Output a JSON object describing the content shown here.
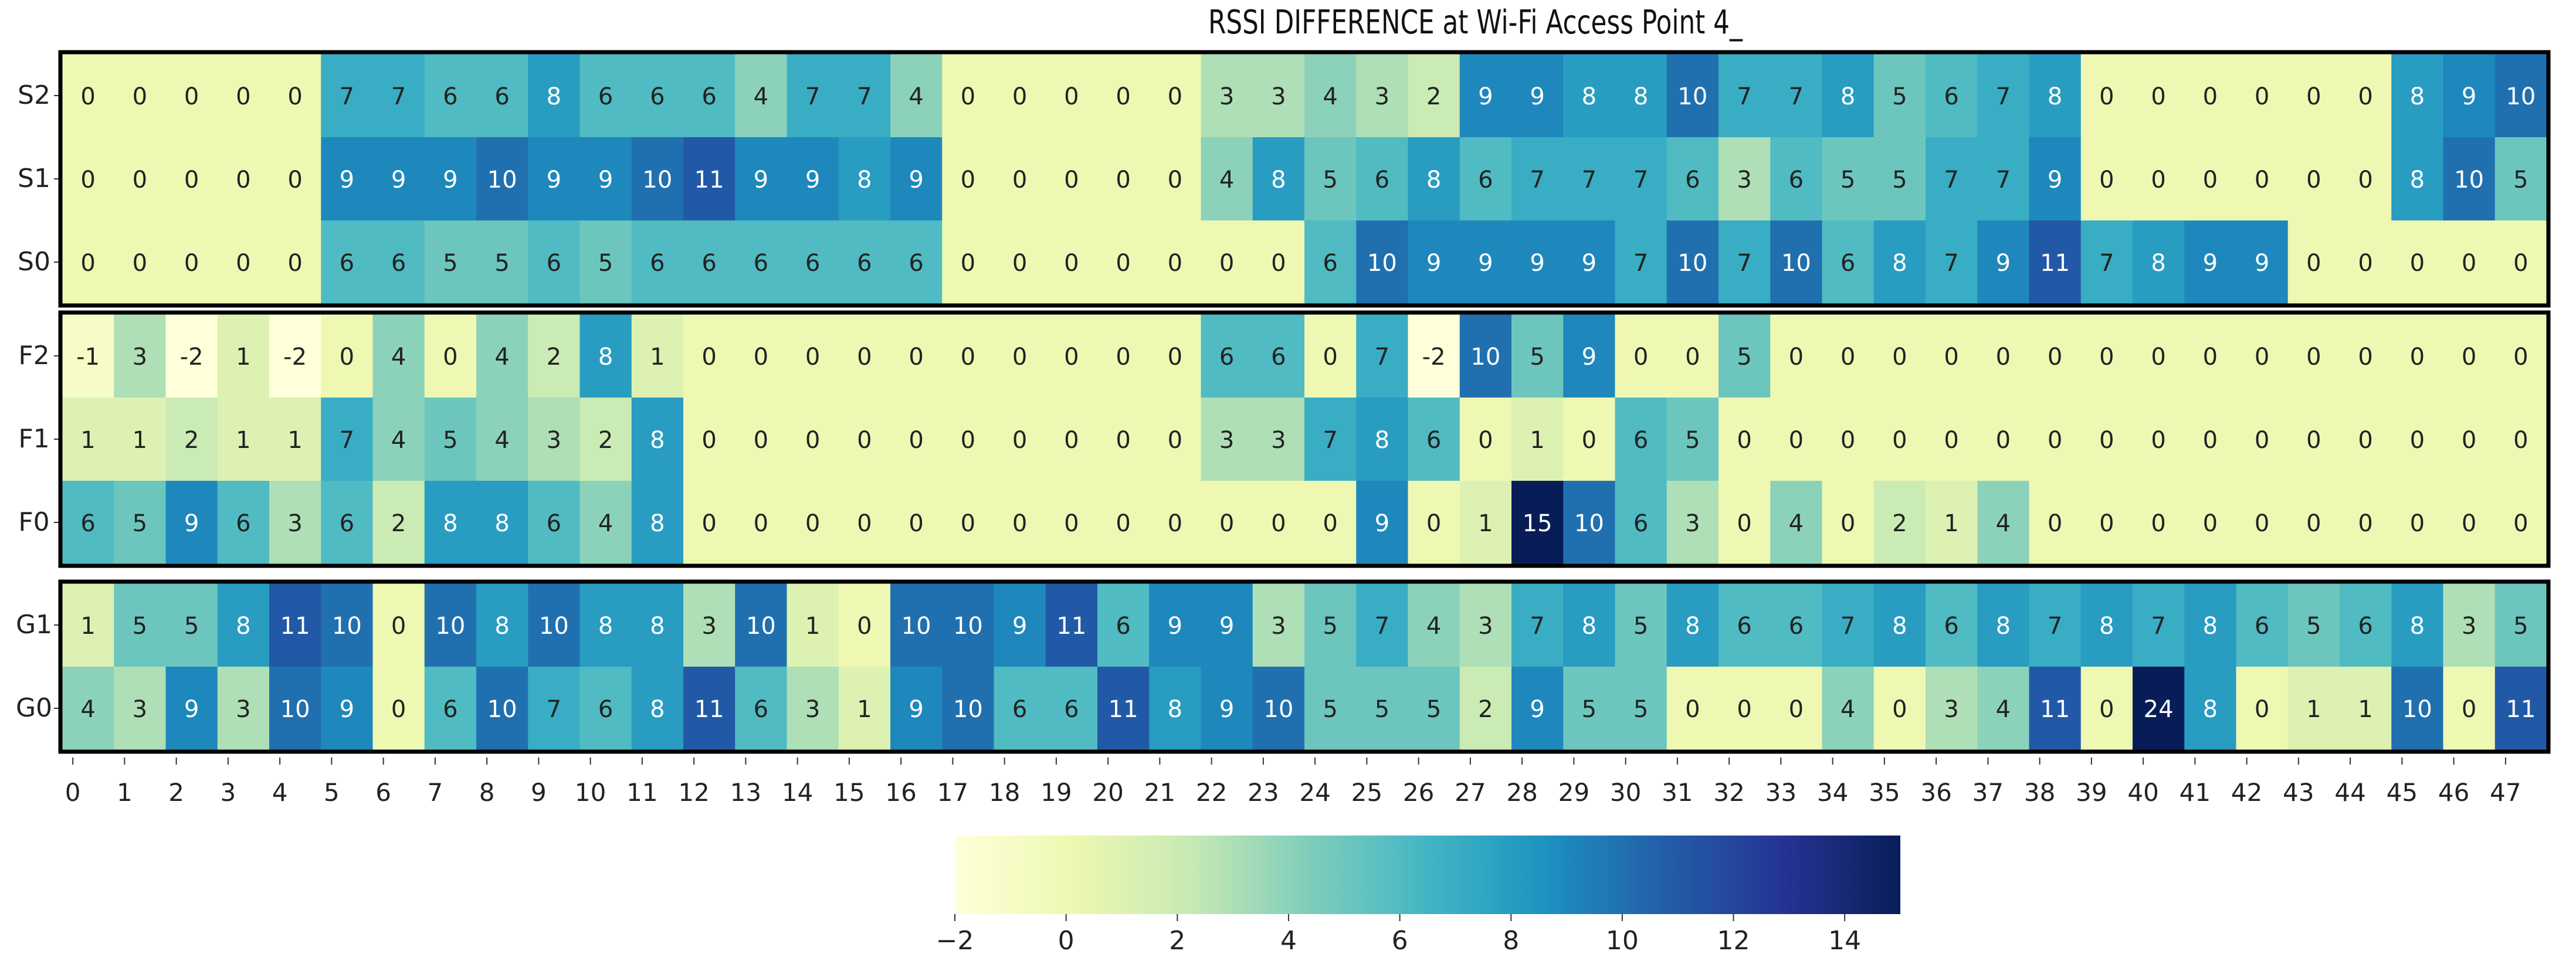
{
  "chart_data": {
    "type": "heatmap",
    "title": "RSSI DIFFERENCE at Wi-Fi Access Point 4_",
    "x_ticks": [
      "0",
      "1",
      "2",
      "3",
      "4",
      "5",
      "6",
      "7",
      "8",
      "9",
      "10",
      "11",
      "12",
      "13",
      "14",
      "15",
      "16",
      "17",
      "18",
      "19",
      "20",
      "21",
      "22",
      "23",
      "24",
      "25",
      "26",
      "27",
      "28",
      "29",
      "30",
      "31",
      "32",
      "33",
      "34",
      "35",
      "36",
      "37",
      "38",
      "39",
      "40",
      "41",
      "42",
      "43",
      "44",
      "45",
      "46",
      "47"
    ],
    "color_range": [
      -2,
      15
    ],
    "colormap": "YlGnBu",
    "colorbar_ticks": [
      "−2",
      "0",
      "2",
      "4",
      "6",
      "8",
      "10",
      "12",
      "14"
    ],
    "colorbar_tick_values": [
      -2,
      0,
      2,
      4,
      6,
      8,
      10,
      12,
      14
    ],
    "panels": [
      {
        "rows": [
          {
            "label": "S2",
            "values": [
              0,
              0,
              0,
              0,
              0,
              7,
              7,
              6,
              6,
              8,
              6,
              6,
              6,
              4,
              7,
              7,
              4,
              0,
              0,
              0,
              0,
              0,
              3,
              3,
              4,
              3,
              2,
              9,
              9,
              8,
              8,
              10,
              7,
              7,
              8,
              5,
              6,
              7,
              8,
              0,
              0,
              0,
              0,
              0,
              0,
              8,
              9,
              10
            ]
          },
          {
            "label": "S1",
            "values": [
              0,
              0,
              0,
              0,
              0,
              9,
              9,
              9,
              10,
              9,
              9,
              10,
              11,
              9,
              9,
              8,
              9,
              0,
              0,
              0,
              0,
              0,
              4,
              8,
              5,
              6,
              8,
              6,
              7,
              7,
              7,
              6,
              3,
              6,
              5,
              5,
              7,
              7,
              9,
              0,
              0,
              0,
              0,
              0,
              0,
              8,
              10,
              5
            ]
          },
          {
            "label": "S0",
            "values": [
              0,
              0,
              0,
              0,
              0,
              6,
              6,
              5,
              5,
              6,
              5,
              6,
              6,
              6,
              6,
              6,
              6,
              0,
              0,
              0,
              0,
              0,
              0,
              0,
              6,
              10,
              9,
              9,
              9,
              9,
              7,
              10,
              7,
              10,
              6,
              8,
              7,
              9,
              11,
              7,
              8,
              9,
              9,
              0,
              0,
              0,
              0,
              0
            ]
          }
        ]
      },
      {
        "rows": [
          {
            "label": "F2",
            "values": [
              -1,
              3,
              -2,
              1,
              -2,
              0,
              4,
              0,
              4,
              2,
              8,
              1,
              0,
              0,
              0,
              0,
              0,
              0,
              0,
              0,
              0,
              0,
              6,
              6,
              0,
              7,
              -2,
              10,
              5,
              9,
              0,
              0,
              5,
              0,
              0,
              0,
              0,
              0,
              0,
              0,
              0,
              0,
              0,
              0,
              0,
              0,
              0,
              0
            ]
          },
          {
            "label": "F1",
            "values": [
              1,
              1,
              2,
              1,
              1,
              7,
              4,
              5,
              4,
              3,
              2,
              8,
              0,
              0,
              0,
              0,
              0,
              0,
              0,
              0,
              0,
              0,
              3,
              3,
              7,
              8,
              6,
              0,
              1,
              0,
              6,
              5,
              0,
              0,
              0,
              0,
              0,
              0,
              0,
              0,
              0,
              0,
              0,
              0,
              0,
              0,
              0,
              0
            ]
          },
          {
            "label": "F0",
            "values": [
              6,
              5,
              9,
              6,
              3,
              6,
              2,
              8,
              8,
              6,
              4,
              8,
              0,
              0,
              0,
              0,
              0,
              0,
              0,
              0,
              0,
              0,
              0,
              0,
              0,
              9,
              0,
              1,
              15,
              10,
              6,
              3,
              0,
              4,
              0,
              2,
              1,
              4,
              0,
              0,
              0,
              0,
              0,
              0,
              0,
              0,
              0,
              0
            ]
          }
        ]
      },
      {
        "rows": [
          {
            "label": "G1",
            "values": [
              1,
              5,
              5,
              8,
              11,
              10,
              0,
              10,
              8,
              10,
              8,
              8,
              3,
              10,
              1,
              0,
              10,
              10,
              9,
              11,
              6,
              9,
              9,
              3,
              5,
              7,
              4,
              3,
              7,
              8,
              5,
              8,
              6,
              6,
              7,
              8,
              6,
              8,
              7,
              8,
              7,
              8,
              6,
              5,
              6,
              8,
              3,
              5
            ]
          },
          {
            "label": "G0",
            "values": [
              4,
              3,
              9,
              3,
              10,
              9,
              0,
              6,
              10,
              7,
              6,
              8,
              11,
              6,
              3,
              1,
              9,
              10,
              6,
              6,
              11,
              8,
              9,
              10,
              5,
              5,
              5,
              2,
              9,
              5,
              5,
              0,
              0,
              0,
              4,
              0,
              3,
              4,
              11,
              0,
              24,
              8,
              0,
              1,
              1,
              10,
              0,
              11
            ]
          }
        ]
      }
    ]
  }
}
